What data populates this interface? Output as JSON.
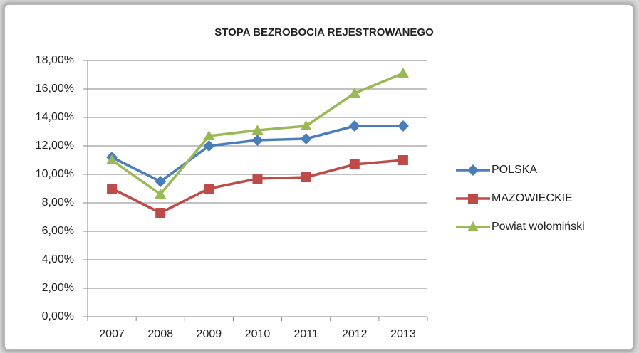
{
  "chart_data": {
    "type": "line",
    "title": "STOPA BEZROBOCIA REJESTROWANEGO",
    "categories": [
      "2007",
      "2008",
      "2009",
      "2010",
      "2011",
      "2012",
      "2013"
    ],
    "series": [
      {
        "name": "POLSKA",
        "color": "#4a7ebb",
        "marker": "diamond",
        "values": [
          11.2,
          9.5,
          12.0,
          12.4,
          12.5,
          13.4,
          13.4
        ]
      },
      {
        "name": "MAZOWIECKIE",
        "color": "#be4b48",
        "marker": "square",
        "values": [
          9.0,
          7.3,
          9.0,
          9.7,
          9.8,
          10.7,
          11.0
        ]
      },
      {
        "name": "Powiat wołomiński",
        "color": "#98b954",
        "marker": "triangle",
        "values": [
          11.0,
          8.6,
          12.7,
          13.1,
          13.4,
          15.7,
          17.1
        ]
      }
    ],
    "ylim": [
      0,
      18
    ],
    "yticks": [
      {
        "value": 0,
        "label": "0,00%"
      },
      {
        "value": 2,
        "label": "2,00%"
      },
      {
        "value": 4,
        "label": "4,00%"
      },
      {
        "value": 6,
        "label": "6,00%"
      },
      {
        "value": 8,
        "label": "8,00%"
      },
      {
        "value": 10,
        "label": "10,00%"
      },
      {
        "value": 12,
        "label": "12,00%"
      },
      {
        "value": 14,
        "label": "14,00%"
      },
      {
        "value": 16,
        "label": "16,00%"
      },
      {
        "value": 18,
        "label": "18,00%"
      }
    ],
    "grid": true,
    "legend": "right"
  }
}
